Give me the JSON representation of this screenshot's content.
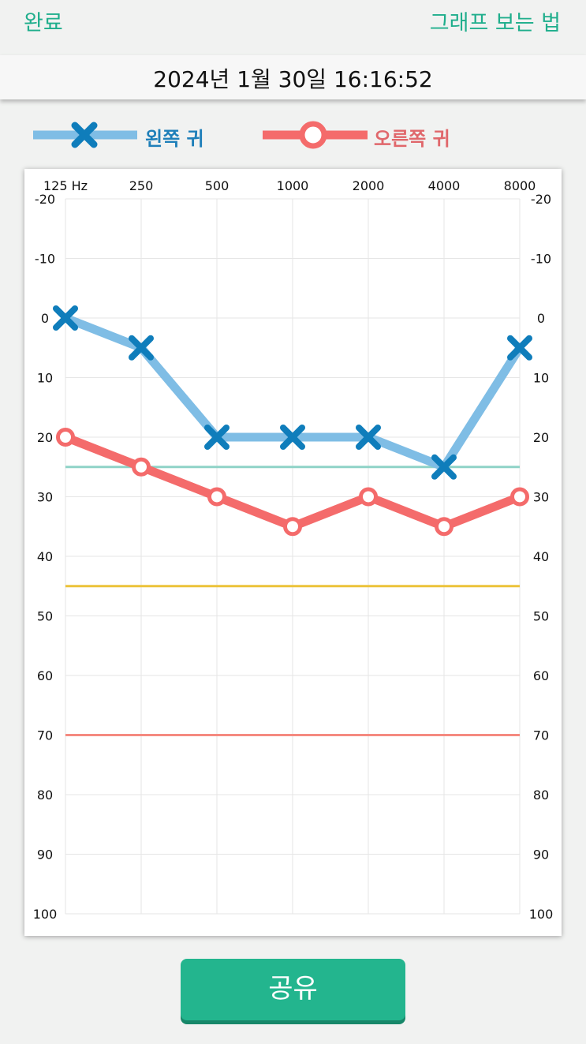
{
  "nav": {
    "done_label": "완료",
    "help_label": "그래프 보는 법"
  },
  "date": {
    "text": "2024년 1월 30일 16:16:52"
  },
  "legend": {
    "left_label": "왼쪽 귀",
    "right_label": "오른쪽 귀"
  },
  "share": {
    "label": "공유"
  },
  "colors": {
    "accent": "#1fae8c",
    "left_ear": "#7fbde5",
    "left_marker": "#0f7dbb",
    "right_ear": "#f46b6b",
    "right_label": "#e0676b",
    "ref_25": "#8fd3c7",
    "ref_45": "#ecc33a",
    "ref_70": "#f58a80",
    "grid": "#e6e6e6"
  },
  "chart_data": {
    "type": "line",
    "title": "",
    "xlabel": "",
    "ylabel": "",
    "categories": [
      "125 Hz",
      "250",
      "500",
      "1000",
      "2000",
      "4000",
      "8000"
    ],
    "yticks": [
      -20,
      -10,
      0,
      10,
      20,
      30,
      40,
      50,
      60,
      70,
      80,
      90,
      100
    ],
    "ylim": [
      -20,
      100
    ],
    "y_inverted": true,
    "grid": true,
    "series": [
      {
        "name": "왼쪽 귀",
        "marker": "x",
        "values": [
          0,
          5,
          20,
          20,
          20,
          25,
          5
        ]
      },
      {
        "name": "오른쪽 귀",
        "marker": "o",
        "values": [
          20,
          25,
          30,
          35,
          30,
          35,
          30
        ]
      }
    ],
    "reference_lines": [
      25,
      45,
      70
    ]
  }
}
